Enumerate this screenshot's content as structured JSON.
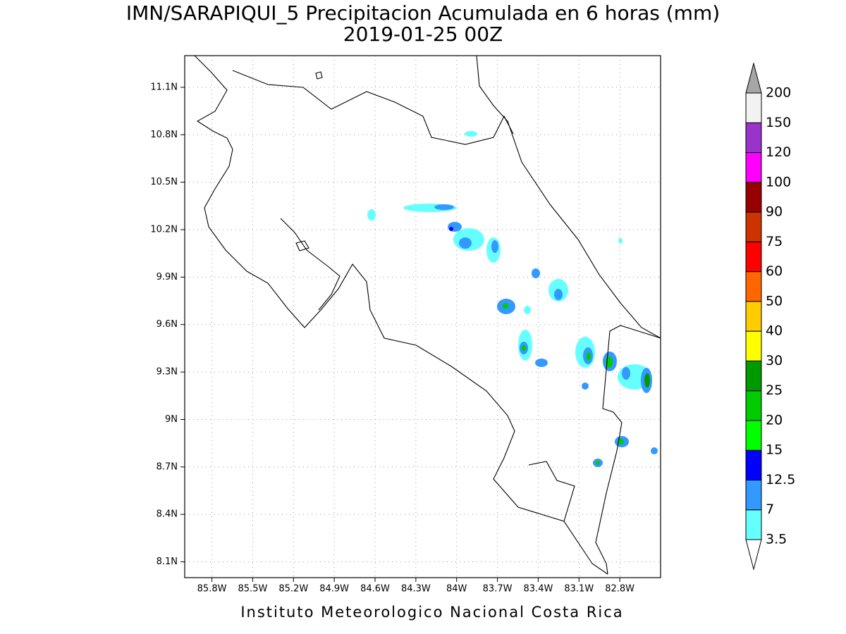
{
  "title": "IMN/SARAPIQUI_5 Precipitacion Acumulada en 6 horas (mm)",
  "subtitle": "2019-01-25 00Z",
  "map": {
    "xlim": [
      -86.0,
      -82.5
    ],
    "ylim": [
      8.0,
      11.3
    ],
    "xticks": [
      {
        "value": -85.8,
        "label": "85.8W"
      },
      {
        "value": -85.5,
        "label": "85.5W"
      },
      {
        "value": -85.2,
        "label": "85.2W"
      },
      {
        "value": -84.9,
        "label": "84.9W"
      },
      {
        "value": -84.6,
        "label": "84.6W"
      },
      {
        "value": -84.3,
        "label": "84.3W"
      },
      {
        "value": -84.0,
        "label": "84W"
      },
      {
        "value": -83.7,
        "label": "83.7W"
      },
      {
        "value": -83.4,
        "label": "83.4W"
      },
      {
        "value": -83.1,
        "label": "83.1W"
      },
      {
        "value": -82.8,
        "label": "82.8W"
      }
    ],
    "yticks": [
      {
        "value": 8.1,
        "label": "8.1N"
      },
      {
        "value": 8.4,
        "label": "8.4N"
      },
      {
        "value": 8.7,
        "label": "8.7N"
      },
      {
        "value": 9.0,
        "label": "9N"
      },
      {
        "value": 9.3,
        "label": "9.3N"
      },
      {
        "value": 9.6,
        "label": "9.6N"
      },
      {
        "value": 9.9,
        "label": "9.9N"
      },
      {
        "value": 10.2,
        "label": "10.2N"
      },
      {
        "value": 10.5,
        "label": "10.5N"
      },
      {
        "value": 10.8,
        "label": "10.8N"
      },
      {
        "value": 11.1,
        "label": "11.1N"
      }
    ],
    "grid": true
  },
  "colorbar": {
    "levels": [
      3.5,
      7,
      12.5,
      15,
      20,
      25,
      30,
      40,
      50,
      60,
      75,
      90,
      100,
      120,
      150,
      200
    ],
    "colors": [
      "#66ffff",
      "#3399ff",
      "#0000ff",
      "#00ff00",
      "#00cc00",
      "#009900",
      "#ffff00",
      "#ffcc00",
      "#ff6600",
      "#ff0000",
      "#cc3300",
      "#990000",
      "#ff00ff",
      "#9933cc",
      "#f2f2f2"
    ],
    "under_color": "#ffffff",
    "over_color": "#a6a6a6"
  },
  "footer": "Instituto Meteorologico Nacional Costa Rica"
}
